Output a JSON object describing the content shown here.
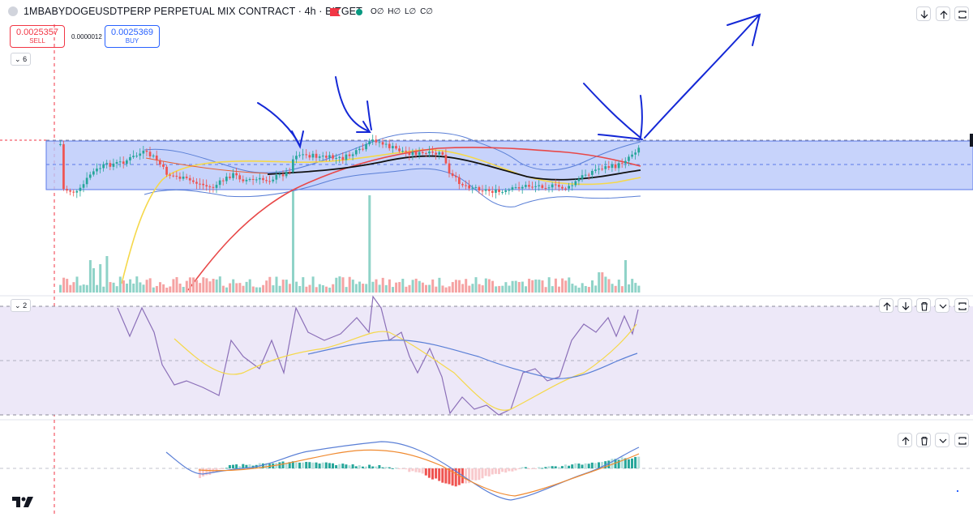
{
  "header": {
    "symbol_title": "1MBABYDOGEUSDTPERP PERPETUAL MIX CONTRACT · 4h · BITGET",
    "ohlc": {
      "o": "O∅",
      "h": "H∅",
      "l": "L∅",
      "c": "C∅"
    },
    "colors": {
      "flag": "#f23645",
      "live": "#089981"
    }
  },
  "trade": {
    "sell_price": "0.0025357",
    "sell_label": "SELL",
    "spread": "0.0000012",
    "buy_price": "0.0025369",
    "buy_label": "BUY"
  },
  "panes": {
    "main_toggle": "6",
    "rsi_toggle": "2"
  },
  "icons": {
    "main": [
      "arrow-down-icon",
      "arrow-up-icon",
      "maximize-icon"
    ],
    "rsi": [
      "arrow-up-icon",
      "arrow-down-icon",
      "trash-icon",
      "chevron-down-icon",
      "maximize-icon"
    ],
    "macd": [
      "arrow-up-icon",
      "trash-icon",
      "chevron-down-icon",
      "maximize-icon"
    ]
  },
  "colors": {
    "up": "#26a69a",
    "down": "#ef5350",
    "vol_up": "#8fd3c8",
    "vol_down": "#f5a3a3",
    "zone_fill": "#b9c8fa",
    "zone_border": "#5b7ae8",
    "annotation": "#1428d6",
    "bollinger": "#5a7fd6",
    "ma_red": "#e84848",
    "ma_yellow": "#f5d84a",
    "ma_black": "#111111",
    "rsi_line": "#8b6fb8",
    "rsi_band": "#ede8f8"
  },
  "branding": {
    "logo": "tradingview-logo"
  }
}
